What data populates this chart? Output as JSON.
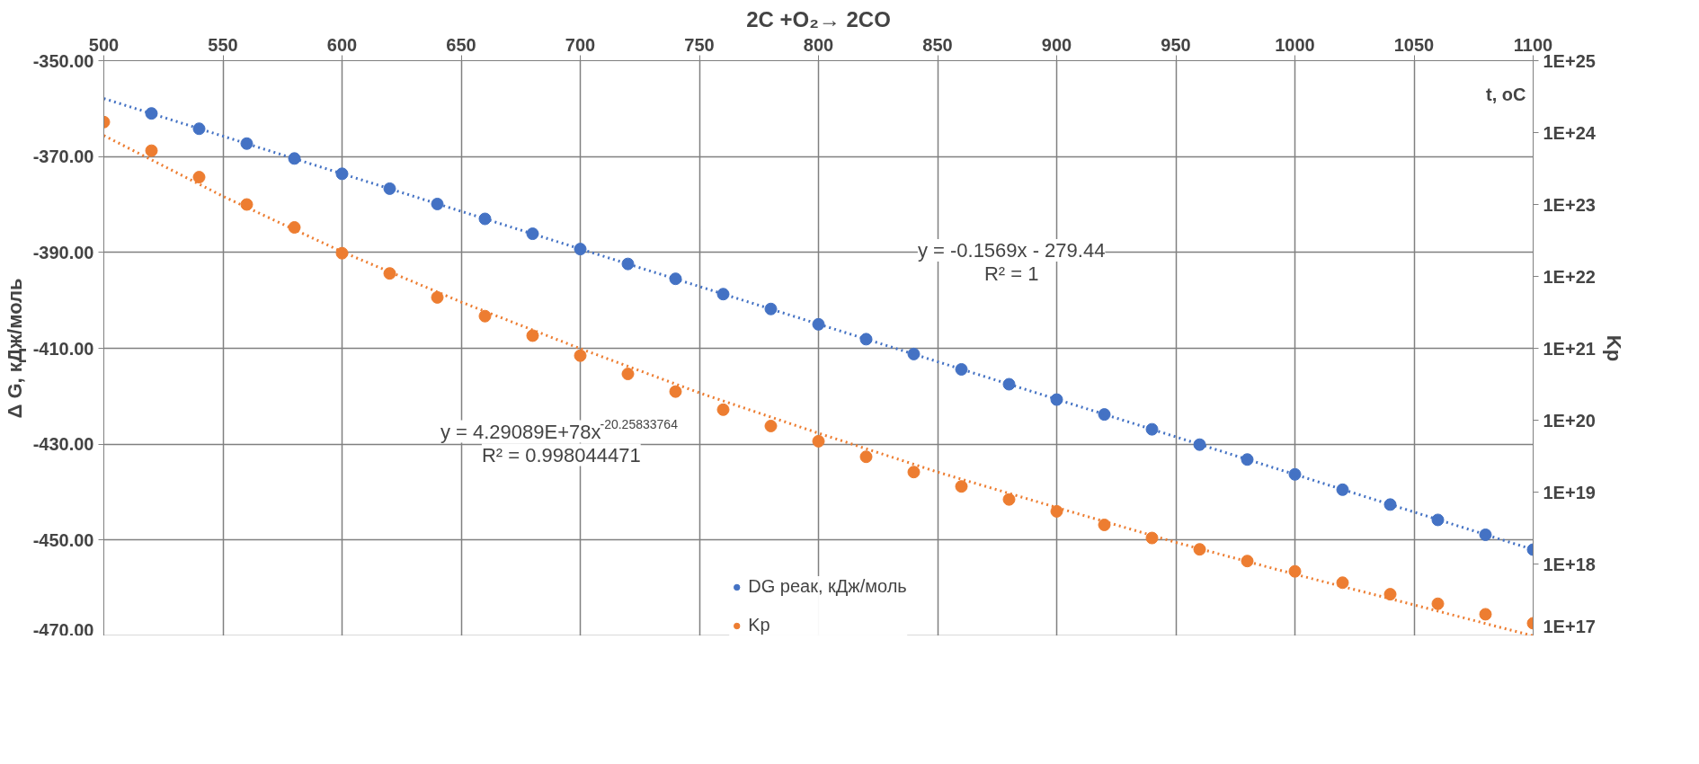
{
  "chart_data": {
    "type": "scatter",
    "title": "2C +O₂→ 2CO",
    "xlabel": "t, oC",
    "ylabel": "Δ G, кДж/моль",
    "y2label": "Kp",
    "xlim": [
      500,
      1100
    ],
    "xticks": [
      500,
      550,
      600,
      650,
      700,
      750,
      800,
      850,
      900,
      950,
      1000,
      1050,
      1100
    ],
    "ylim": [
      -470,
      -350
    ],
    "yticks": [
      {
        "value": -350,
        "label": "-350.00"
      },
      {
        "value": -370,
        "label": "-370.00"
      },
      {
        "value": -390,
        "label": "-390.00"
      },
      {
        "value": -410,
        "label": "-410.00"
      },
      {
        "value": -430,
        "label": "-430.00"
      },
      {
        "value": -450,
        "label": "-450.00"
      },
      {
        "value": -470,
        "label": "-470.00"
      }
    ],
    "y2lim": [
      1e+17,
      1e+25
    ],
    "y2ticks": [
      {
        "value": 1e+17,
        "label": "1E+17"
      },
      {
        "value": 1e+18,
        "label": "1E+18"
      },
      {
        "value": 1e+19,
        "label": "1E+19"
      },
      {
        "value": 1e+20,
        "label": "1E+20"
      },
      {
        "value": 1e+21,
        "label": "1E+21"
      },
      {
        "value": 1e+22,
        "label": "1E+22"
      },
      {
        "value": 1e+23,
        "label": "1E+23"
      },
      {
        "value": 1e+24,
        "label": "1E+24"
      },
      {
        "value": 1e+25,
        "label": "1E+25"
      }
    ],
    "log": "y2",
    "grid": true,
    "legend": "bottom",
    "series": [
      {
        "name": "DG реак, кДж/моль",
        "color": "#4472c4",
        "x": [
          520,
          540,
          560,
          580,
          600,
          620,
          640,
          660,
          680,
          700,
          720,
          740,
          760,
          780,
          800,
          820,
          840,
          860,
          880,
          900,
          920,
          940,
          960,
          980,
          1000,
          1020,
          1040,
          1060,
          1080,
          1100
        ],
        "values": [
          -361.0,
          -364.2,
          -367.3,
          -370.4,
          -373.6,
          -376.7,
          -379.9,
          -383.0,
          -386.1,
          -389.3,
          -392.4,
          -395.5,
          -398.7,
          -401.8,
          -405.0,
          -408.1,
          -411.2,
          -414.4,
          -417.5,
          -420.7,
          -423.8,
          -426.9,
          -430.1,
          -433.2,
          -436.3,
          -439.5,
          -442.6,
          -445.8,
          -448.9,
          -452.0
        ]
      },
      {
        "name": "Kp",
        "color": "#ed7d31",
        "axis": "y2",
        "x": [
          500,
          520,
          540,
          560,
          580,
          600,
          620,
          640,
          660,
          680,
          700,
          720,
          740,
          760,
          780,
          800,
          820,
          840,
          860,
          880,
          900,
          920,
          940,
          960,
          980,
          1000,
          1020,
          1040,
          1060,
          1080,
          1100
        ],
        "values": [
          1.4e+24,
          5.6e+23,
          2.4e+23,
          1e+23,
          4.8e+22,
          2.1e+22,
          1.1e+22,
          5.1e+21,
          2.8e+21,
          1.5e+21,
          7.9e+20,
          4.4e+20,
          2.5e+20,
          1.4e+20,
          8.3e+19,
          5.1e+19,
          3.1e+19,
          1.9e+19,
          1.2e+19,
          7.9e+18,
          5.4e+18,
          3.5e+18,
          2.3e+18,
          1.6e+18,
          1.1e+18,
          7.9e+17,
          5.5e+17,
          3.8e+17,
          2.8e+17,
          2e+17,
          1.5e+17
        ]
      },
      {
        "type": "line",
        "color": "#4472c4",
        "line_style": "dotted",
        "x": [
          500,
          1100
        ],
        "values": [
          -357.9,
          -452.0
        ]
      },
      {
        "type": "line",
        "color": "#ed7d31",
        "line_style": "dotted",
        "axis": "y2",
        "x": [
          500,
          550,
          600,
          650,
          700,
          750,
          800,
          850,
          900,
          950,
          1000,
          1050,
          1100
        ],
        "values": [
          9.1e+23,
          1.3e+23,
          2.2e+22,
          4.4e+21,
          9.9e+20,
          2.4e+20,
          6.6e+19,
          1.9e+19,
          6.1e+18,
          2e+18,
          7.2e+17,
          2.7e+17,
          1e+17
        ]
      }
    ],
    "annotations": [
      "y = -0.1569x - 279.44\nR² = 1",
      "y = 4.29089E+78x$^{-20.25833764}$\nR² = 0.998044471"
    ]
  }
}
